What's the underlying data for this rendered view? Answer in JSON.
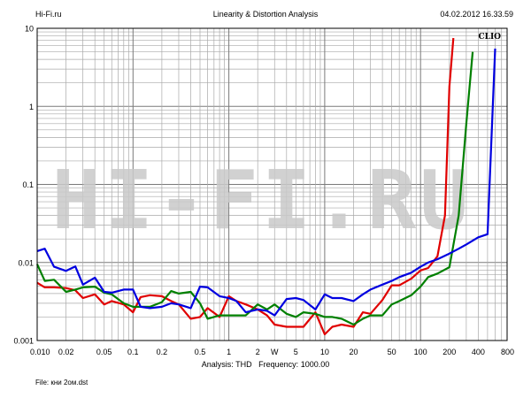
{
  "header": {
    "left": "Hi-Fi.ru",
    "center": "Linearity & Distortion Analysis",
    "right": "04.02.2012 16.33.59"
  },
  "footer": {
    "analysis_label": "Analysis:",
    "analysis_value": "THD",
    "frequency_label": "Frequency:",
    "frequency_value": "1000.00",
    "file_label": "File:",
    "file_value": "кни 2ом.dst"
  },
  "chart_data": {
    "type": "line",
    "title": "Linearity & Distortion Analysis",
    "xlabel": "W",
    "ylabel": "",
    "x_scale": "log",
    "y_scale": "log",
    "xlim": [
      0.01,
      800
    ],
    "ylim": [
      0.001,
      10
    ],
    "grid": true,
    "brand_label": "CLIO",
    "watermark": "HI-FI.RU",
    "x_ticks": [
      "0.010",
      "0.02",
      "0.05",
      "0.1",
      "0.2",
      "0.5",
      "1",
      "2",
      "W",
      "5",
      "10",
      "20",
      "50",
      "100",
      "200",
      "400",
      "800"
    ],
    "y_ticks": [
      "10",
      "1",
      "0.1",
      "0.01",
      "0.001"
    ],
    "colors": {
      "red": "#e00000",
      "green": "#008000",
      "blue": "#0000e0"
    },
    "series": [
      {
        "color": "#e00000",
        "x": [
          0.01,
          0.012,
          0.015,
          0.02,
          0.025,
          0.03,
          0.04,
          0.05,
          0.06,
          0.08,
          0.1,
          0.12,
          0.15,
          0.2,
          0.25,
          0.3,
          0.4,
          0.5,
          0.6,
          0.8,
          1,
          1.2,
          1.5,
          2,
          2.5,
          3,
          4,
          5,
          6,
          8,
          10,
          12,
          15,
          20,
          25,
          30,
          40,
          50,
          60,
          80,
          100,
          120,
          150,
          180,
          200,
          220
        ],
        "y": [
          0.0055,
          0.0048,
          0.0048,
          0.0047,
          0.0044,
          0.0035,
          0.0039,
          0.0029,
          0.0032,
          0.0029,
          0.0023,
          0.0036,
          0.0038,
          0.0037,
          0.0032,
          0.0029,
          0.0019,
          0.002,
          0.0026,
          0.002,
          0.0037,
          0.0032,
          0.0029,
          0.0025,
          0.0021,
          0.0016,
          0.0015,
          0.0015,
          0.0015,
          0.0023,
          0.0012,
          0.0015,
          0.0016,
          0.0015,
          0.0023,
          0.0022,
          0.0033,
          0.0051,
          0.0051,
          0.0062,
          0.0079,
          0.0085,
          0.012,
          0.04,
          1.8,
          7.5
        ]
      },
      {
        "color": "#008000",
        "x": [
          0.01,
          0.012,
          0.015,
          0.02,
          0.025,
          0.03,
          0.04,
          0.05,
          0.06,
          0.08,
          0.1,
          0.12,
          0.15,
          0.2,
          0.25,
          0.3,
          0.4,
          0.5,
          0.6,
          0.8,
          1,
          1.2,
          1.5,
          2,
          2.5,
          3,
          4,
          5,
          6,
          8,
          10,
          12,
          15,
          20,
          25,
          30,
          40,
          50,
          60,
          80,
          100,
          120,
          150,
          200,
          250,
          300,
          350
        ],
        "y": [
          0.0095,
          0.0058,
          0.006,
          0.0042,
          0.0045,
          0.0048,
          0.0049,
          0.0041,
          0.0039,
          0.003,
          0.0027,
          0.0027,
          0.0027,
          0.0031,
          0.0043,
          0.004,
          0.0042,
          0.003,
          0.0019,
          0.0021,
          0.0021,
          0.0021,
          0.0021,
          0.0029,
          0.0025,
          0.0029,
          0.0022,
          0.002,
          0.0023,
          0.0022,
          0.002,
          0.002,
          0.0019,
          0.0016,
          0.0019,
          0.0021,
          0.0021,
          0.0029,
          0.0032,
          0.0038,
          0.0049,
          0.0065,
          0.0072,
          0.0087,
          0.04,
          0.6,
          5.0
        ]
      },
      {
        "color": "#0000e0",
        "x": [
          0.01,
          0.012,
          0.015,
          0.02,
          0.025,
          0.03,
          0.04,
          0.05,
          0.06,
          0.08,
          0.1,
          0.12,
          0.15,
          0.2,
          0.25,
          0.3,
          0.4,
          0.5,
          0.6,
          0.8,
          1,
          1.2,
          1.5,
          2,
          2.5,
          3,
          4,
          5,
          6,
          8,
          10,
          12,
          15,
          20,
          25,
          30,
          40,
          50,
          60,
          80,
          100,
          120,
          150,
          200,
          250,
          300,
          400,
          500,
          600
        ],
        "y": [
          0.014,
          0.015,
          0.0088,
          0.0078,
          0.0089,
          0.0052,
          0.0064,
          0.0042,
          0.0041,
          0.0045,
          0.0045,
          0.0027,
          0.0026,
          0.0027,
          0.003,
          0.0029,
          0.0026,
          0.0049,
          0.0048,
          0.0037,
          0.0035,
          0.0032,
          0.0023,
          0.0025,
          0.0024,
          0.0021,
          0.0034,
          0.0035,
          0.0033,
          0.0025,
          0.0039,
          0.0035,
          0.0035,
          0.0032,
          0.0039,
          0.0045,
          0.0052,
          0.0058,
          0.0065,
          0.0074,
          0.0088,
          0.01,
          0.011,
          0.013,
          0.015,
          0.017,
          0.021,
          0.023,
          5.5
        ]
      }
    ]
  }
}
